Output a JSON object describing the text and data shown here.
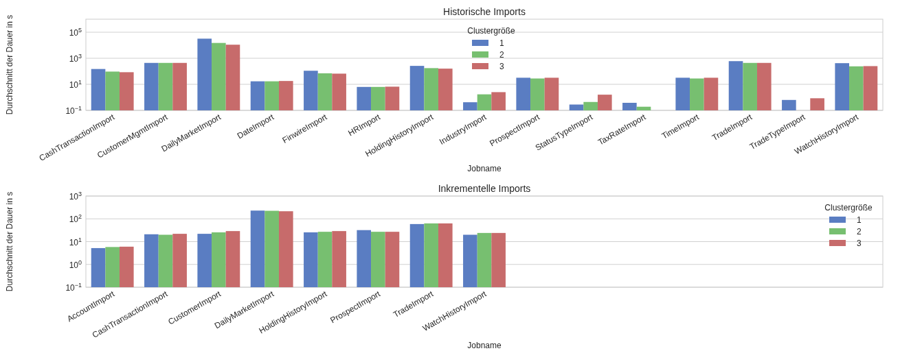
{
  "chart_data": [
    {
      "type": "bar",
      "title": "Historische Imports",
      "xlabel": "Jobname",
      "ylabel": "Durchschnitt der Dauer in s",
      "legend_title": "Clustergröße",
      "legend": "top",
      "grid": "y",
      "log": "y",
      "ylim": [
        0.1,
        1000000
      ],
      "yticks": [
        {
          "value": 0.1,
          "label": "10$^{−1}$"
        },
        {
          "value": 10,
          "label": "10$^{1}$"
        },
        {
          "value": 1000,
          "label": "10$^{3}$"
        },
        {
          "value": 100000,
          "label": "10$^{5}$"
        }
      ],
      "categories": [
        "CashTransactionImport",
        "CustomerMgmtImport",
        "DailyMarketImport",
        "DateImport",
        "FinwireImport",
        "HRImport",
        "HoldingHistoryImport",
        "IndustryImport",
        "ProspectImport",
        "StatusTypeImport",
        "TaxRateImport",
        "TimeImport",
        "TradeImport",
        "TradeTypeImport",
        "WatchHistoryImport"
      ],
      "series": [
        {
          "name": "1",
          "color": "#5a7dc2",
          "values": [
            150,
            440,
            32000,
            17,
            110,
            6.3,
            260,
            0.42,
            32,
            0.28,
            0.38,
            32,
            600,
            0.63,
            420
          ]
        },
        {
          "name": "2",
          "color": "#77bf70",
          "values": [
            95,
            440,
            15000,
            17,
            70,
            6.3,
            175,
            1.7,
            28,
            0.44,
            0.19,
            28,
            440,
            null,
            240
          ]
        },
        {
          "name": "3",
          "color": "#c76b6b",
          "values": [
            85,
            440,
            11000,
            18,
            66,
            6.6,
            160,
            2.5,
            32,
            1.6,
            null,
            32,
            440,
            0.85,
            250
          ]
        }
      ]
    },
    {
      "type": "bar",
      "title": "Inkrementelle Imports",
      "xlabel": "Jobname",
      "ylabel": "Durchschnitt der Dauer in s",
      "legend_title": "Clustergröße",
      "legend": "right",
      "grid": "y",
      "log": "y",
      "ylim": [
        0.1,
        1000
      ],
      "yticks": [
        {
          "value": 0.1,
          "label": "10$^{−1}$"
        },
        {
          "value": 1,
          "label": "10$^{0}$"
        },
        {
          "value": 10,
          "label": "10$^{1}$"
        },
        {
          "value": 100,
          "label": "10$^{2}$"
        },
        {
          "value": 1000,
          "label": "10$^{3}$"
        }
      ],
      "categories": [
        "AccountImport",
        "CashTransactionImport",
        "CustomerImport",
        "DailyMarketImport",
        "HoldingHistoryImport",
        "ProspectImport",
        "TradeImport",
        "WatchHistoryImport",
        null,
        null,
        null,
        null,
        null,
        null,
        null
      ],
      "series": [
        {
          "name": "1",
          "color": "#5a7dc2",
          "values": [
            5.2,
            21,
            22,
            230,
            25.5,
            32,
            59,
            20,
            null,
            null,
            null,
            null,
            null,
            null,
            null
          ]
        },
        {
          "name": "2",
          "color": "#77bf70",
          "values": [
            5.8,
            20,
            25.5,
            225,
            27,
            27,
            63,
            24,
            null,
            null,
            null,
            null,
            null,
            null,
            null
          ]
        },
        {
          "name": "3",
          "color": "#c76b6b",
          "values": [
            6.0,
            22,
            29,
            215,
            29,
            27,
            63,
            24,
            null,
            null,
            null,
            null,
            null,
            null,
            null
          ]
        }
      ]
    }
  ]
}
